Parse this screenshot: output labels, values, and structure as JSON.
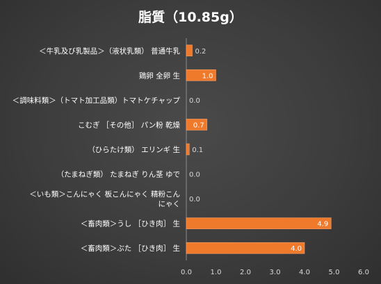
{
  "chart_data": {
    "type": "bar",
    "orientation": "horizontal",
    "title": "脂質（10.85g）",
    "categories": [
      "＜牛乳及び乳製品＞（液状乳類） 普通牛乳",
      "鶏卵 全卵 生",
      "＜調味料類＞（トマト加工品類）トマトケチャップ",
      "こむぎ ［その他］ パン粉 乾燥",
      "（ひらたけ類） エリンギ 生",
      "（たまねぎ類） たまねぎ りん茎 ゆで",
      "＜いも類＞こんにゃく 板こんにゃく 精粉こんにゃく",
      "＜畜肉類＞うし ［ひき肉］ 生",
      "＜畜肉類＞ぶた ［ひき肉］ 生"
    ],
    "category_lines": [
      [
        "＜牛乳及び乳製品＞（液状乳類） 普通牛乳"
      ],
      [
        "鶏卵 全卵 生"
      ],
      [
        "＜調味料類＞（トマト加工品類）トマトケチャップ"
      ],
      [
        "こむぎ ［その他］ パン粉 乾燥"
      ],
      [
        "（ひらたけ類） エリンギ 生"
      ],
      [
        "（たまねぎ類） たまねぎ りん茎 ゆで"
      ],
      [
        "＜いも類＞こんにゃく 板こんにゃく 精粉こん",
        "にゃく"
      ],
      [
        "＜畜肉類＞うし ［ひき肉］ 生"
      ],
      [
        "＜畜肉類＞ぶた ［ひき肉］ 生"
      ]
    ],
    "values": [
      0.2,
      1.0,
      0.0,
      0.7,
      0.1,
      0.0,
      0.0,
      4.9,
      4.0
    ],
    "value_labels": [
      "0.2",
      "1.0",
      "0.0",
      "0.7",
      "0.1",
      "0.0",
      "0.0",
      "4.9",
      "4.0"
    ],
    "xlim": [
      0,
      6
    ],
    "xticks": [
      "0.0",
      "1.0",
      "2.0",
      "3.0",
      "4.0",
      "5.0",
      "6.0"
    ],
    "xlabel": "",
    "ylabel": "",
    "grid": false,
    "legend": "none",
    "colors": {
      "bar": "#f07a2c",
      "bar_border": "#f5a06a",
      "text": "#ffffff",
      "axis_text": "#d9d9d9",
      "value_outside": "#d9d9d9",
      "axis_line": "#8c8c8c"
    }
  }
}
